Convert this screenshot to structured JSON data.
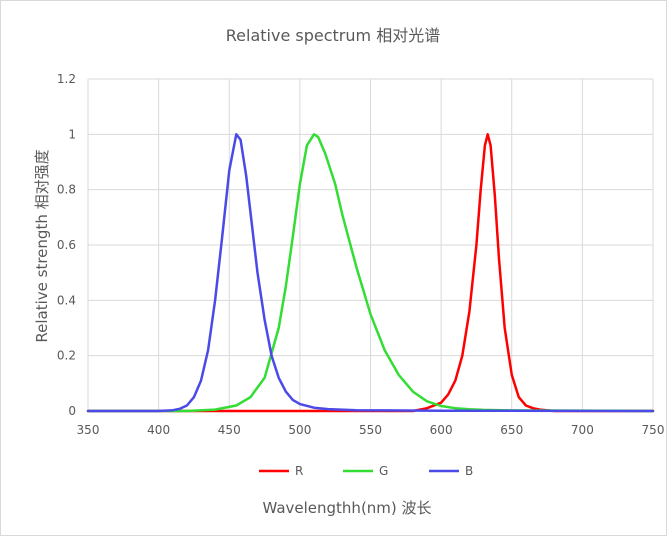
{
  "chart_data": {
    "type": "line",
    "title": "Relative spectrum 相对光谱",
    "xlabel": "Wavelengthh(nm) 波长",
    "ylabel": "Relative strength 相对强度",
    "xlim": [
      350,
      750
    ],
    "ylim": [
      0,
      1.2
    ],
    "x_ticks": [
      350,
      400,
      450,
      500,
      550,
      600,
      650,
      700,
      750
    ],
    "y_ticks": [
      0,
      0.2,
      0.4,
      0.6,
      0.8,
      1,
      1.2
    ],
    "grid": true,
    "legend_position": "bottom",
    "series": [
      {
        "name": "R",
        "color": "#ff0000",
        "x": [
          350,
          580,
          590,
          600,
          605,
          610,
          615,
          620,
          625,
          628,
          631,
          633,
          635,
          638,
          641,
          645,
          650,
          655,
          660,
          665,
          670,
          680,
          750
        ],
        "y": [
          0,
          0,
          0.01,
          0.03,
          0.06,
          0.11,
          0.2,
          0.36,
          0.6,
          0.8,
          0.96,
          1.0,
          0.96,
          0.78,
          0.55,
          0.3,
          0.13,
          0.05,
          0.02,
          0.01,
          0.005,
          0,
          0
        ]
      },
      {
        "name": "G",
        "color": "#33dd33",
        "x": [
          350,
          420,
          440,
          455,
          465,
          475,
          485,
          490,
          495,
          500,
          505,
          510,
          513,
          518,
          525,
          530,
          540,
          550,
          560,
          570,
          580,
          590,
          600,
          610,
          620,
          630,
          650,
          750
        ],
        "y": [
          0,
          0,
          0.005,
          0.02,
          0.05,
          0.12,
          0.3,
          0.45,
          0.63,
          0.82,
          0.96,
          1.0,
          0.99,
          0.93,
          0.82,
          0.71,
          0.52,
          0.35,
          0.22,
          0.13,
          0.07,
          0.035,
          0.018,
          0.01,
          0.006,
          0.004,
          0.002,
          0
        ]
      },
      {
        "name": "B",
        "color": "#4a4ae8",
        "x": [
          350,
          400,
          410,
          415,
          420,
          425,
          430,
          435,
          440,
          445,
          450,
          455,
          458,
          462,
          465,
          470,
          475,
          480,
          485,
          490,
          495,
          500,
          510,
          520,
          540,
          560,
          600,
          750
        ],
        "y": [
          0,
          0,
          0.003,
          0.008,
          0.02,
          0.05,
          0.11,
          0.22,
          0.4,
          0.63,
          0.87,
          1.0,
          0.98,
          0.85,
          0.72,
          0.5,
          0.33,
          0.2,
          0.12,
          0.07,
          0.04,
          0.025,
          0.012,
          0.007,
          0.003,
          0.002,
          0.001,
          0
        ]
      }
    ]
  }
}
